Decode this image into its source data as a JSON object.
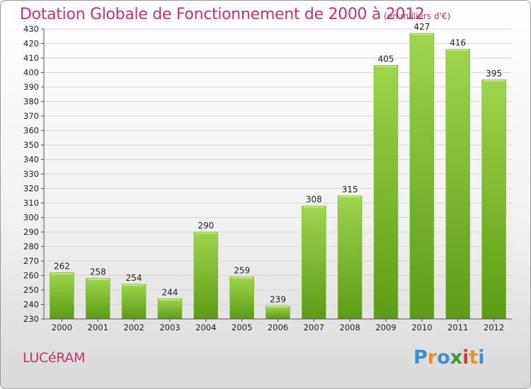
{
  "title": "Dotation Globale de Fonctionnement de 2000 à 2012",
  "subtitle": "(en milliers d'€)",
  "commune": "LUCéRAM",
  "logo": {
    "text": "Proxiti",
    "letter_colors": [
      "#3a8fd6",
      "#e8902a",
      "#3a8fd6",
      "#3a9a35",
      "#d6392b",
      "#e8902a",
      "#3a8fd6"
    ]
  },
  "colors": {
    "title": "#c8336b",
    "bar_light": "#9ed54c",
    "bar_dark": "#5d9c16"
  },
  "chart_data": {
    "type": "bar",
    "categories": [
      "2000",
      "2001",
      "2002",
      "2003",
      "2004",
      "2005",
      "2006",
      "2007",
      "2008",
      "2009",
      "2010",
      "2011",
      "2012"
    ],
    "values": [
      262,
      258,
      254,
      244,
      290,
      259,
      239,
      308,
      315,
      405,
      427,
      416,
      395
    ],
    "ylim": [
      230,
      430
    ],
    "yticks": [
      230,
      240,
      250,
      260,
      270,
      280,
      290,
      300,
      310,
      320,
      330,
      340,
      350,
      360,
      370,
      380,
      390,
      400,
      410,
      420,
      430
    ],
    "grid": true,
    "xlabel": "",
    "ylabel": ""
  }
}
